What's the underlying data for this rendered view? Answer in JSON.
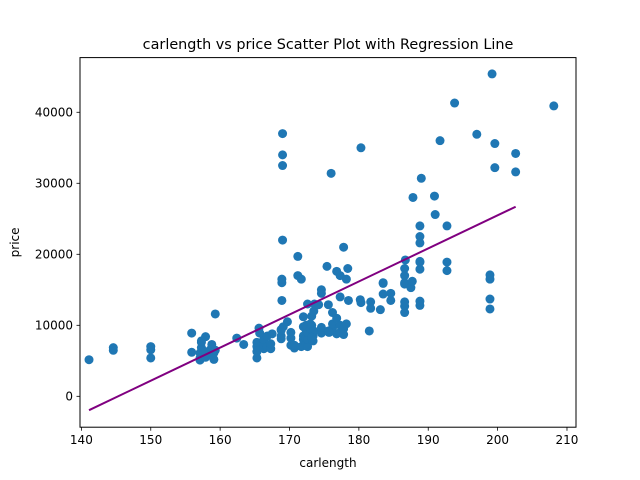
{
  "chart_data": {
    "type": "scatter",
    "title": "carlength vs price Scatter Plot with Regression Line",
    "xlabel": "carlength",
    "ylabel": "price",
    "xlim": [
      139.8,
      211.3
    ],
    "ylim": [
      -4350,
      47700
    ],
    "xticks": [
      {
        "value": 140,
        "label": "140"
      },
      {
        "value": 150,
        "label": "150"
      },
      {
        "value": 160,
        "label": "160"
      },
      {
        "value": 170,
        "label": "170"
      },
      {
        "value": 180,
        "label": "180"
      },
      {
        "value": 190,
        "label": "190"
      },
      {
        "value": 200,
        "label": "200"
      },
      {
        "value": 210,
        "label": "210"
      }
    ],
    "yticks": [
      {
        "value": 0,
        "label": "0"
      },
      {
        "value": 10000,
        "label": "10000"
      },
      {
        "value": 20000,
        "label": "20000"
      },
      {
        "value": 30000,
        "label": "30000"
      },
      {
        "value": 40000,
        "label": "40000"
      }
    ],
    "grid": false,
    "colors": {
      "points": "#1f77b4",
      "line": "#800080"
    },
    "regression_line": {
      "x": [
        141.1,
        202.6
      ],
      "y": [
        -1950,
        26700
      ]
    },
    "points": [
      [
        141.1,
        5150
      ],
      [
        144.6,
        6480
      ],
      [
        144.6,
        6850
      ],
      [
        150,
        5400
      ],
      [
        150,
        6550
      ],
      [
        150,
        7000
      ],
      [
        155.9,
        6200
      ],
      [
        155.9,
        8900
      ],
      [
        157.1,
        5100
      ],
      [
        157.1,
        5400
      ],
      [
        157.1,
        6100
      ],
      [
        157.3,
        6850
      ],
      [
        157.3,
        7600
      ],
      [
        157.3,
        7800
      ],
      [
        157.9,
        5500
      ],
      [
        157.9,
        6300
      ],
      [
        157.9,
        8400
      ],
      [
        158.7,
        5800
      ],
      [
        158.7,
        6700
      ],
      [
        158.8,
        7300
      ],
      [
        158.8,
        6500
      ],
      [
        159.1,
        5200
      ],
      [
        159.1,
        6100
      ],
      [
        159.3,
        6500
      ],
      [
        159.3,
        11600
      ],
      [
        162.4,
        8200
      ],
      [
        163.4,
        7300
      ],
      [
        165.3,
        5400
      ],
      [
        165.3,
        6300
      ],
      [
        165.3,
        7000
      ],
      [
        165.3,
        7600
      ],
      [
        165.6,
        9600
      ],
      [
        166.3,
        6700
      ],
      [
        166.3,
        7300
      ],
      [
        166.3,
        8000
      ],
      [
        166.8,
        7000
      ],
      [
        166.8,
        8500
      ],
      [
        167.3,
        6700
      ],
      [
        167.3,
        7400
      ],
      [
        168.8,
        8100
      ],
      [
        168.8,
        8500
      ],
      [
        168.8,
        9300
      ],
      [
        168.9,
        13500
      ],
      [
        168.9,
        16000
      ],
      [
        168.9,
        16500
      ],
      [
        169,
        22000
      ],
      [
        169,
        32500
      ],
      [
        169,
        34000
      ],
      [
        169,
        37000
      ],
      [
        169.1,
        9800
      ],
      [
        169.7,
        10500
      ],
      [
        170.2,
        7200
      ],
      [
        170.2,
        8200
      ],
      [
        170.7,
        6800
      ],
      [
        170.7,
        7200
      ],
      [
        171.2,
        17000
      ],
      [
        171.2,
        19700
      ],
      [
        171.7,
        7000
      ],
      [
        171.7,
        16500
      ],
      [
        172,
        8000
      ],
      [
        172,
        8500
      ],
      [
        172,
        9800
      ],
      [
        172,
        11200
      ],
      [
        172.4,
        7400
      ],
      [
        172.4,
        8200
      ],
      [
        172.4,
        9300
      ],
      [
        172.4,
        10000
      ],
      [
        172.6,
        7000
      ],
      [
        172.6,
        8000
      ],
      [
        172.6,
        9000
      ],
      [
        173,
        9500
      ],
      [
        173,
        10200
      ],
      [
        173.2,
        10000
      ],
      [
        173.2,
        11300
      ],
      [
        173.4,
        7800
      ],
      [
        173.4,
        8500
      ],
      [
        173.5,
        9200
      ],
      [
        173.5,
        12000
      ],
      [
        173.6,
        13000
      ],
      [
        174.6,
        8900
      ],
      [
        174.6,
        9700
      ],
      [
        175.4,
        18300
      ],
      [
        175.6,
        12900
      ],
      [
        175.6,
        9200
      ],
      [
        176.2,
        9600
      ],
      [
        176.2,
        10200
      ],
      [
        176.2,
        11800
      ],
      [
        176.8,
        8800
      ],
      [
        176.8,
        11000
      ],
      [
        177.3,
        9000
      ],
      [
        177.3,
        10000
      ],
      [
        177.3,
        17000
      ],
      [
        177.8,
        9500
      ],
      [
        177.8,
        8700
      ],
      [
        178.2,
        10200
      ],
      [
        178.2,
        16500
      ],
      [
        178.4,
        18000
      ],
      [
        180.2,
        13600
      ],
      [
        180.3,
        13200
      ],
      [
        181.5,
        9200
      ],
      [
        181.7,
        13300
      ],
      [
        183.1,
        12200
      ],
      [
        183.5,
        16000
      ],
      [
        183.5,
        15900
      ],
      [
        184.6,
        14500
      ],
      [
        184.6,
        13500
      ],
      [
        186.6,
        11800
      ],
      [
        186.6,
        12700
      ],
      [
        186.6,
        13300
      ],
      [
        186.6,
        15800
      ],
      [
        186.6,
        16000
      ],
      [
        186.6,
        17000
      ],
      [
        186.6,
        18000
      ],
      [
        187.5,
        15300
      ],
      [
        188.8,
        12800
      ],
      [
        188.8,
        13400
      ],
      [
        176,
        31400
      ],
      [
        180.3,
        35000
      ],
      [
        177.3,
        14000
      ],
      [
        178.5,
        13500
      ],
      [
        187.7,
        16200
      ],
      [
        187.8,
        28000
      ],
      [
        188.8,
        24000
      ],
      [
        188.8,
        21600
      ],
      [
        188.8,
        22500
      ],
      [
        188.8,
        17900
      ],
      [
        188.8,
        18900
      ],
      [
        188.8,
        19000
      ],
      [
        189,
        30700
      ],
      [
        190.9,
        28200
      ],
      [
        191,
        25600
      ],
      [
        191.7,
        36000
      ],
      [
        192.7,
        24000
      ],
      [
        192.7,
        17700
      ],
      [
        192.7,
        18900
      ],
      [
        193.8,
        41300
      ],
      [
        197,
        36900
      ],
      [
        198.9,
        12300
      ],
      [
        198.9,
        13700
      ],
      [
        198.9,
        16500
      ],
      [
        198.9,
        17100
      ],
      [
        199.2,
        45400
      ],
      [
        199.6,
        32200
      ],
      [
        199.6,
        35600
      ],
      [
        202.6,
        31600
      ],
      [
        202.6,
        34200
      ],
      [
        208.1,
        40900
      ],
      [
        174.6,
        15000
      ],
      [
        174.6,
        14500
      ],
      [
        175.7,
        9000
      ],
      [
        170.2,
        9000
      ],
      [
        173.2,
        8300
      ],
      [
        168.8,
        9400
      ],
      [
        167.5,
        8800
      ],
      [
        172.6,
        13000
      ],
      [
        176.8,
        17600
      ],
      [
        177.8,
        21000
      ],
      [
        165.7,
        8900
      ],
      [
        174.2,
        12900
      ],
      [
        181.7,
        12400
      ],
      [
        183.5,
        14400
      ],
      [
        186.7,
        19200
      ]
    ]
  }
}
